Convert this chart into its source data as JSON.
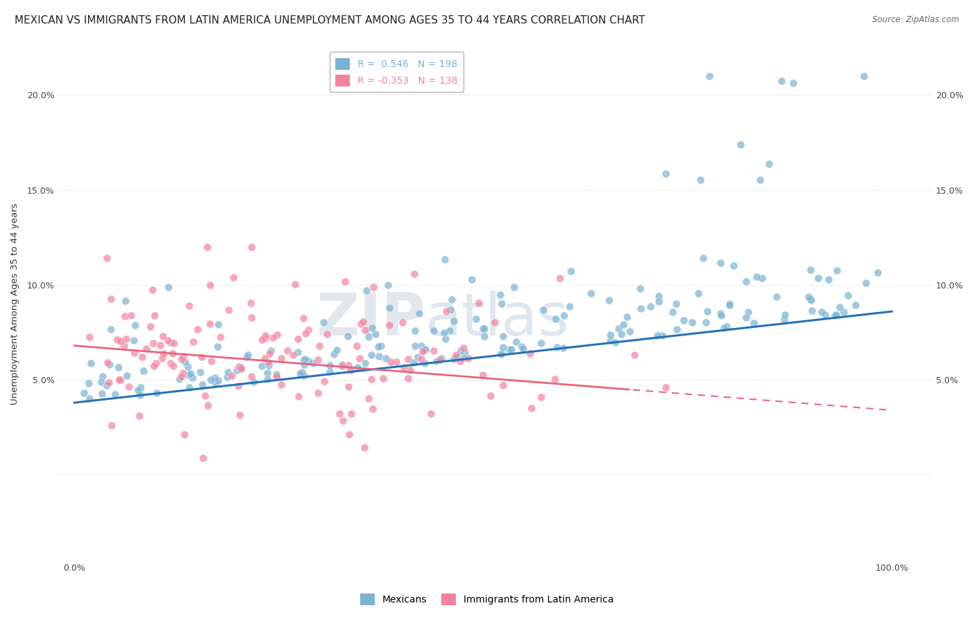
{
  "title": "MEXICAN VS IMMIGRANTS FROM LATIN AMERICA UNEMPLOYMENT AMONG AGES 35 TO 44 YEARS CORRELATION CHART",
  "source": "Source: ZipAtlas.com",
  "ylabel": "Unemployment Among Ages 35 to 44 years",
  "legend_bottom": [
    "Mexicans",
    "Immigrants from Latin America"
  ],
  "series": [
    {
      "name": "Mexicans",
      "color": "#7ab3d4",
      "R": 0.546,
      "N": 198,
      "slope": 0.048,
      "intercept": 0.038
    },
    {
      "name": "Immigrants from Latin America",
      "color": "#f4829e",
      "R": -0.353,
      "N": 138,
      "slope": -0.034,
      "intercept": 0.068
    }
  ],
  "xlim": [
    -0.02,
    1.05
  ],
  "ylim": [
    -0.045,
    0.225
  ],
  "yticks": [
    0.0,
    0.05,
    0.1,
    0.15,
    0.2
  ],
  "ytick_labels": [
    "",
    "5.0%",
    "10.0%",
    "15.0%",
    "20.0%"
  ],
  "watermark_zip": "ZIP",
  "watermark_atlas": "atlas",
  "background_color": "#ffffff",
  "grid_color": "#dddddd",
  "title_fontsize": 11,
  "axis_fontsize": 9
}
